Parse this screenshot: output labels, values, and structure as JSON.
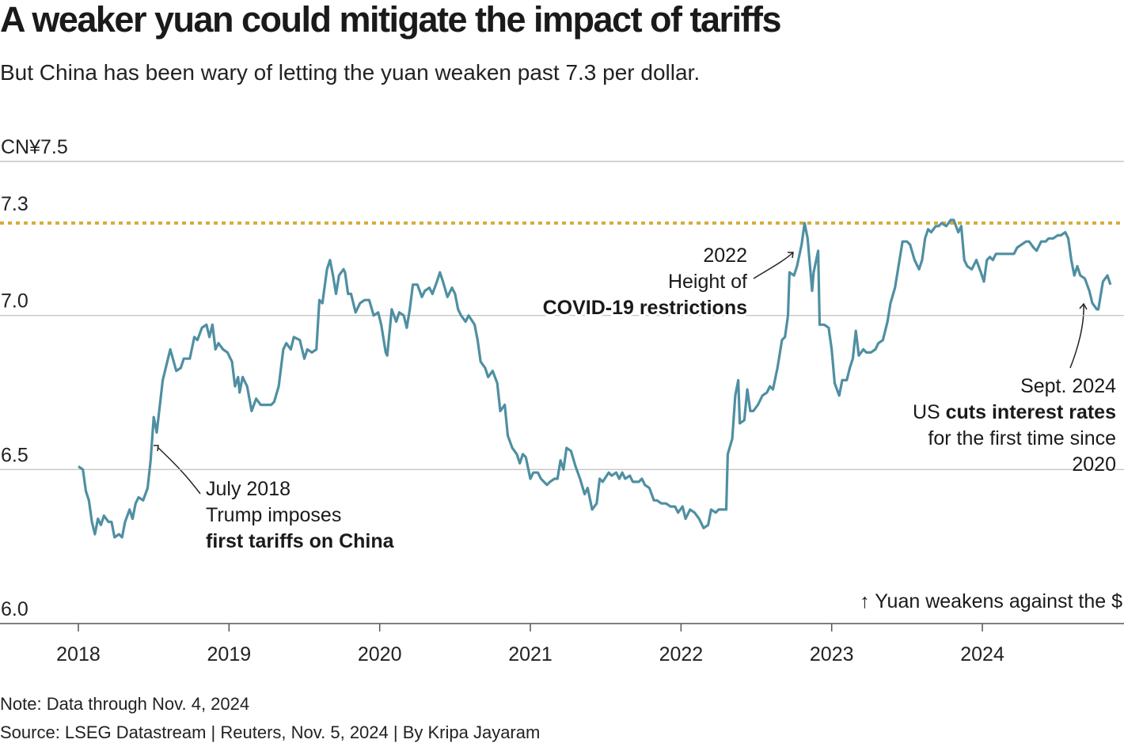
{
  "chart_data": {
    "type": "line",
    "title": "A weaker yuan could mitigate the impact of tariffs",
    "subtitle": "But China has been wary of letting the yuan weaken past 7.3 per dollar.",
    "note": "Note: Data through Nov. 4, 2024",
    "source": "Source: LSEG Datastream | Reuters, Nov. 5, 2024 | By Kripa Jayaram",
    "color": "#4f8fa2",
    "xlim": [
      2017.48,
      2024.94
    ],
    "xticks": [
      2018,
      2019,
      2020,
      2021,
      2022,
      2023,
      2024
    ],
    "ylim": [
      6.0,
      7.5
    ],
    "yticks": [
      {
        "value": 6.0,
        "label": "6.0"
      },
      6.5,
      {
        "value": 7.0,
        "label": "7.0"
      },
      {
        "value": 7.5,
        "label": "CN¥7.5"
      }
    ],
    "grid": true,
    "reference_lines": [
      {
        "value": 7.3,
        "color": "#d2ae37"
      }
    ],
    "direction_note": "↑ Yuan weakens against the $",
    "annotations": [
      {
        "lines": [
          [
            {
              "text": "July 2018"
            }
          ],
          [
            {
              "text": "Trump imposes"
            }
          ],
          [
            {
              "text": "first tariffs on China",
              "bold": true
            }
          ]
        ]
      },
      {
        "lines": [
          [
            {
              "text": "2022"
            }
          ],
          [
            {
              "text": "Height of"
            }
          ],
          [
            {
              "text": "COVID-19 restrictions",
              "bold": true
            }
          ]
        ]
      },
      {
        "lines": [
          [
            {
              "text": "Sept. 2024"
            }
          ],
          [
            {
              "text": "US "
            },
            {
              "text": "cuts interest rates",
              "bold": true
            }
          ],
          [
            {
              "text": "for the first time since"
            }
          ],
          [
            {
              "text": "2020"
            }
          ]
        ]
      }
    ],
    "x": [
      2018.0,
      2018.03,
      2018.05,
      2018.07,
      2018.09,
      2018.11,
      2018.13,
      2018.15,
      2018.17,
      2018.2,
      2018.22,
      2018.24,
      2018.27,
      2018.29,
      2018.31,
      2018.34,
      2018.36,
      2018.38,
      2018.4,
      2018.43,
      2018.46,
      2018.48,
      2018.5,
      2018.52,
      2018.56,
      2018.58,
      2018.61,
      2018.65,
      2018.68,
      2018.7,
      2018.74,
      2018.77,
      2018.79,
      2018.82,
      2018.85,
      2018.87,
      2018.89,
      2018.91,
      2018.93,
      2018.96,
      2018.99,
      2019.02,
      2019.04,
      2019.06,
      2019.07,
      2019.09,
      2019.12,
      2019.15,
      2019.18,
      2019.21,
      2019.25,
      2019.28,
      2019.3,
      2019.33,
      2019.36,
      2019.38,
      2019.41,
      2019.43,
      2019.47,
      2019.5,
      2019.52,
      2019.55,
      2019.58,
      2019.6,
      2019.62,
      2019.65,
      2019.67,
      2019.69,
      2019.71,
      2019.73,
      2019.76,
      2019.77,
      2019.79,
      2019.81,
      2019.84,
      2019.87,
      2019.9,
      2019.93,
      2019.96,
      2019.99,
      2020.01,
      2020.04,
      2020.05,
      2020.08,
      2020.11,
      2020.13,
      2020.16,
      2020.18,
      2020.2,
      2020.22,
      2020.25,
      2020.28,
      2020.3,
      2020.33,
      2020.35,
      2020.38,
      2020.4,
      2020.42,
      2020.45,
      2020.48,
      2020.5,
      2020.52,
      2020.54,
      2020.57,
      2020.59,
      2020.63,
      2020.65,
      2020.67,
      2020.7,
      2020.72,
      2020.75,
      2020.78,
      2020.8,
      2020.83,
      2020.85,
      2020.88,
      2020.91,
      2020.93,
      2020.95,
      2020.97,
      2021.0,
      2021.02,
      2021.05,
      2021.07,
      2021.11,
      2021.13,
      2021.16,
      2021.18,
      2021.2,
      2021.22,
      2021.24,
      2021.27,
      2021.3,
      2021.33,
      2021.36,
      2021.38,
      2021.41,
      2021.44,
      2021.46,
      2021.48,
      2021.52,
      2021.54,
      2021.57,
      2021.59,
      2021.61,
      2021.63,
      2021.66,
      2021.68,
      2021.72,
      2021.74,
      2021.76,
      2021.79,
      2021.82,
      2021.84,
      2021.87,
      2021.9,
      2021.93,
      2021.96,
      2021.98,
      2022.01,
      2022.03,
      2022.06,
      2022.09,
      2022.12,
      2022.15,
      2022.18,
      2022.2,
      2022.23,
      2022.25,
      2022.28,
      2022.3,
      2022.31,
      2022.34,
      2022.36,
      2022.38,
      2022.39,
      2022.42,
      2022.44,
      2022.46,
      2022.48,
      2022.51,
      2022.54,
      2022.57,
      2022.59,
      2022.61,
      2022.64,
      2022.67,
      2022.69,
      2022.71,
      2022.72,
      2022.75,
      2022.77,
      2022.8,
      2022.82,
      2022.84,
      2022.87,
      2022.88,
      2022.91,
      2022.92,
      2022.95,
      2022.98,
      2023.0,
      2023.02,
      2023.05,
      2023.07,
      2023.1,
      2023.12,
      2023.14,
      2023.16,
      2023.18,
      2023.21,
      2023.23,
      2023.26,
      2023.29,
      2023.31,
      2023.34,
      2023.37,
      2023.39,
      2023.42,
      2023.44,
      2023.47,
      2023.5,
      2023.52,
      2023.55,
      2023.58,
      2023.6,
      2023.62,
      2023.64,
      2023.66,
      2023.69,
      2023.71,
      2023.73,
      2023.76,
      2023.79,
      2023.81,
      2023.84,
      2023.86,
      2023.88,
      2023.9,
      2023.93,
      2023.96,
      2023.99,
      2024.01,
      2024.03,
      2024.05,
      2024.07,
      2024.09,
      2024.12,
      2024.14,
      2024.18,
      2024.21,
      2024.23,
      2024.26,
      2024.29,
      2024.31,
      2024.34,
      2024.36,
      2024.39,
      2024.42,
      2024.44,
      2024.47,
      2024.5,
      2024.52,
      2024.55,
      2024.57,
      2024.59,
      2024.61,
      2024.63,
      2024.65,
      2024.68,
      2024.71,
      2024.73,
      2024.76,
      2024.77,
      2024.8,
      2024.83,
      2024.85
    ],
    "values": [
      6.51,
      6.5,
      6.43,
      6.4,
      6.33,
      6.29,
      6.34,
      6.32,
      6.35,
      6.33,
      6.33,
      6.28,
      6.29,
      6.28,
      6.33,
      6.37,
      6.34,
      6.39,
      6.41,
      6.4,
      6.44,
      6.53,
      6.67,
      6.62,
      6.79,
      6.83,
      6.89,
      6.82,
      6.83,
      6.86,
      6.86,
      6.93,
      6.92,
      6.96,
      6.97,
      6.93,
      6.97,
      6.89,
      6.91,
      6.89,
      6.88,
      6.85,
      6.77,
      6.8,
      6.75,
      6.8,
      6.77,
      6.69,
      6.73,
      6.71,
      6.71,
      6.71,
      6.72,
      6.77,
      6.89,
      6.91,
      6.89,
      6.93,
      6.92,
      6.86,
      6.89,
      6.88,
      6.89,
      7.05,
      7.04,
      7.15,
      7.18,
      7.13,
      7.07,
      7.13,
      7.15,
      7.14,
      7.07,
      7.07,
      7.01,
      7.04,
      7.05,
      7.05,
      7.0,
      7.01,
      6.97,
      6.88,
      6.87,
      7.02,
      6.98,
      7.01,
      7.0,
      6.96,
      7.02,
      7.1,
      7.1,
      7.06,
      7.08,
      7.09,
      7.07,
      7.11,
      7.14,
      7.11,
      7.06,
      7.09,
      7.07,
      7.02,
      7.0,
      6.98,
      7.0,
      6.97,
      6.92,
      6.85,
      6.83,
      6.8,
      6.82,
      6.78,
      6.69,
      6.71,
      6.61,
      6.57,
      6.55,
      6.52,
      6.55,
      6.54,
      6.47,
      6.49,
      6.49,
      6.47,
      6.45,
      6.46,
      6.47,
      6.47,
      6.53,
      6.5,
      6.57,
      6.56,
      6.51,
      6.47,
      6.42,
      6.44,
      6.37,
      6.39,
      6.47,
      6.46,
      6.49,
      6.48,
      6.49,
      6.47,
      6.49,
      6.47,
      6.48,
      6.46,
      6.46,
      6.47,
      6.45,
      6.44,
      6.4,
      6.4,
      6.39,
      6.39,
      6.38,
      6.38,
      6.36,
      6.38,
      6.34,
      6.37,
      6.36,
      6.34,
      6.31,
      6.32,
      6.37,
      6.36,
      6.37,
      6.37,
      6.37,
      6.55,
      6.6,
      6.74,
      6.79,
      6.65,
      6.66,
      6.76,
      6.69,
      6.69,
      6.71,
      6.74,
      6.75,
      6.77,
      6.76,
      6.83,
      6.92,
      6.93,
      7.0,
      7.14,
      7.13,
      7.16,
      7.23,
      7.3,
      7.25,
      7.08,
      7.14,
      7.21,
      6.97,
      6.97,
      6.96,
      6.89,
      6.78,
      6.74,
      6.79,
      6.79,
      6.83,
      6.86,
      6.95,
      6.87,
      6.89,
      6.88,
      6.88,
      6.89,
      6.91,
      6.92,
      6.98,
      7.04,
      7.09,
      7.15,
      7.24,
      7.24,
      7.23,
      7.18,
      7.15,
      7.18,
      7.25,
      7.28,
      7.27,
      7.29,
      7.29,
      7.3,
      7.29,
      7.31,
      7.31,
      7.27,
      7.29,
      7.18,
      7.16,
      7.15,
      7.18,
      7.14,
      7.11,
      7.18,
      7.19,
      7.18,
      7.2,
      7.2,
      7.2,
      7.2,
      7.2,
      7.22,
      7.23,
      7.24,
      7.24,
      7.22,
      7.21,
      7.24,
      7.24,
      7.25,
      7.25,
      7.26,
      7.26,
      7.27,
      7.25,
      7.18,
      7.13,
      7.16,
      7.13,
      7.12,
      7.08,
      7.04,
      7.02,
      7.02,
      7.11,
      7.13,
      7.1
    ]
  }
}
